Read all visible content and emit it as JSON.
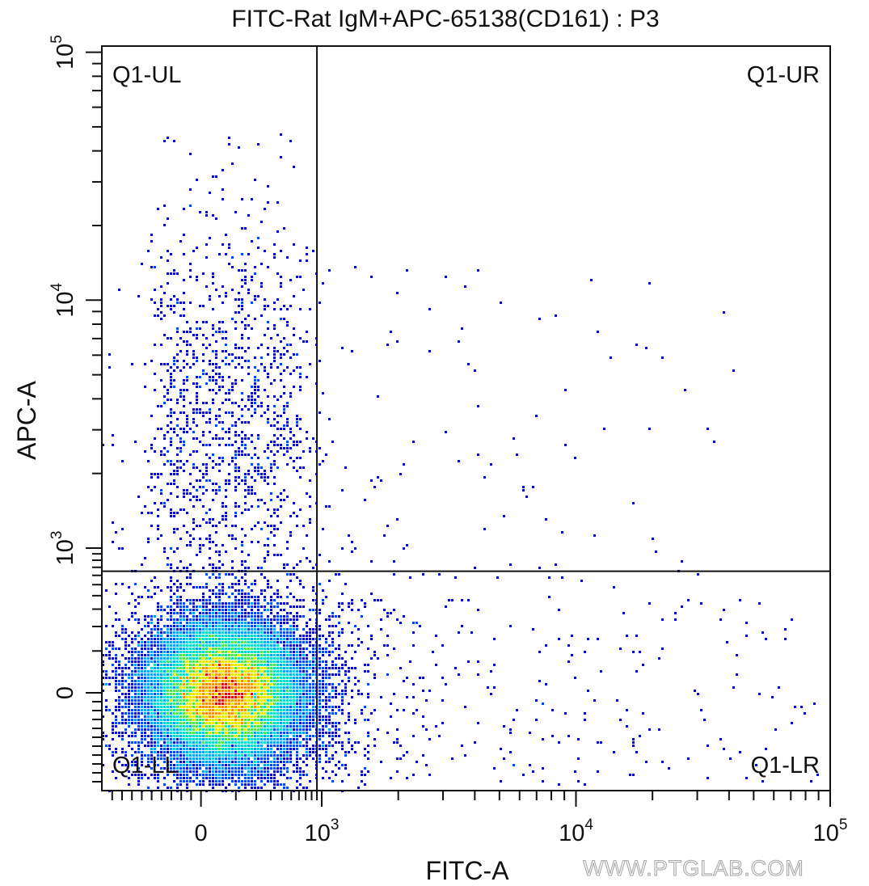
{
  "chart_data": {
    "type": "scatter",
    "subtype": "flow-cytometry density dot plot",
    "title": "FITC-Rat IgM+APC-65138(CD161) : P3",
    "xlabel": "FITC-A",
    "ylabel": "APC-A",
    "x_scale": "biexponential",
    "y_scale": "biexponential",
    "xlim": [
      -1000,
      100000
    ],
    "ylim": [
      -1100,
      100000
    ],
    "x_ticks": [
      {
        "label": "0",
        "value": 0
      },
      {
        "label": "10",
        "sup": "3",
        "value": 1000
      },
      {
        "label": "10",
        "sup": "4",
        "value": 10000
      },
      {
        "label": "10",
        "sup": "5",
        "value": 100000
      }
    ],
    "y_ticks": [
      {
        "label": "0",
        "value": 0
      },
      {
        "label": "10",
        "sup": "3",
        "value": 1000
      },
      {
        "label": "10",
        "sup": "4",
        "value": 10000
      },
      {
        "label": "10",
        "sup": "5",
        "value": 100000
      }
    ],
    "quadrant_gate": {
      "x_threshold": 900,
      "y_threshold": 650
    },
    "quadrants": [
      {
        "label": "Q1-UL",
        "position": "top-left"
      },
      {
        "label": "Q1-UR",
        "position": "top-right"
      },
      {
        "label": "Q1-LL",
        "position": "bottom-left"
      },
      {
        "label": "Q1-LR",
        "position": "bottom-right"
      }
    ],
    "populations": [
      {
        "name": "main",
        "center": [
          60,
          0
        ],
        "spread_decades": [
          0.55,
          0.5
        ],
        "fraction": 0.9
      },
      {
        "name": "upper-left",
        "x_range": [
          -300,
          800
        ],
        "y_range": [
          700,
          15000
        ],
        "fraction": 0.07
      },
      {
        "name": "lower-right",
        "x_range": [
          1000,
          70000
        ],
        "y_range": [
          -800,
          650
        ],
        "fraction": 0.02
      },
      {
        "name": "upper-right",
        "x_range": [
          1000,
          40000
        ],
        "y_range": [
          700,
          15000
        ],
        "fraction": 0.01
      }
    ],
    "density_colors": [
      "#0000c8",
      "#0046ff",
      "#00a0ff",
      "#00dcc8",
      "#50e650",
      "#e6e600",
      "#ff8c00",
      "#e60000"
    ],
    "grid": false,
    "legend": "none"
  },
  "watermark": "WWW.PTGLAB.COM"
}
